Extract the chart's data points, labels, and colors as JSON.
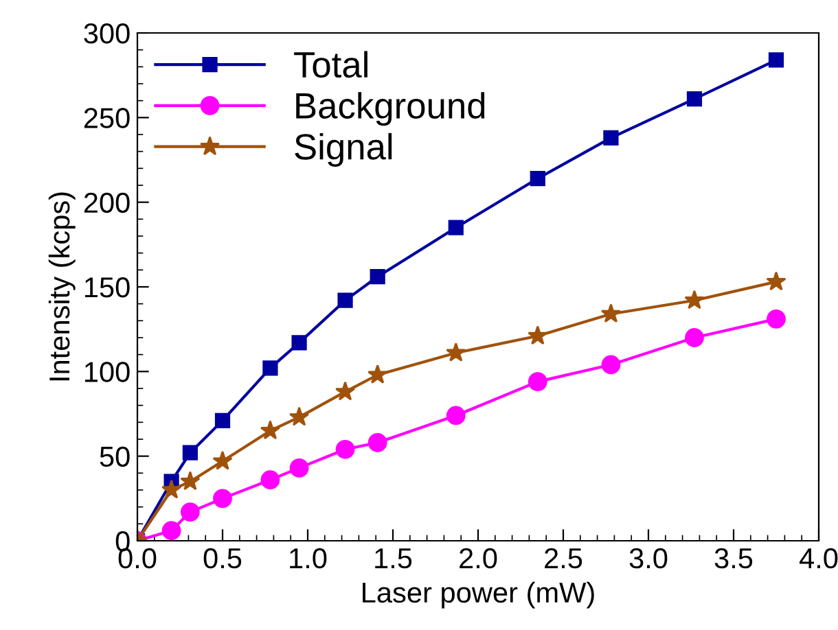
{
  "chart_data": {
    "type": "line",
    "xlabel": "Laser power (mW)",
    "ylabel": "Intensity (kcps)",
    "x": [
      0,
      0.2,
      0.31,
      0.5,
      0.78,
      0.95,
      1.22,
      1.41,
      1.87,
      2.35,
      2.78,
      3.27,
      3.75
    ],
    "series": [
      {
        "name": "Total",
        "color": "#0000a0",
        "marker": "square",
        "values": [
          0,
          35,
          52,
          71,
          102,
          117,
          142,
          156,
          185,
          214,
          238,
          261,
          284
        ]
      },
      {
        "name": "Background",
        "color": "#ff00ff",
        "marker": "circle",
        "values": [
          0,
          6,
          17,
          25,
          36,
          43,
          54,
          58,
          74,
          94,
          104,
          120,
          131
        ]
      },
      {
        "name": "Signal",
        "color": "#a0520a",
        "marker": "star",
        "values": [
          0,
          30,
          35,
          47,
          65,
          73,
          88,
          98,
          111,
          121,
          134,
          142,
          153
        ]
      }
    ],
    "xlim": [
      0,
      4
    ],
    "xticks": [
      {
        "value": 0,
        "label": "0.0"
      },
      0.5,
      {
        "value": 1,
        "label": "1.0"
      },
      1.5,
      {
        "value": 2,
        "label": "2.0"
      },
      2.5,
      {
        "value": 3,
        "label": "3.0"
      },
      3.5,
      {
        "value": 4,
        "label": "4.0"
      }
    ],
    "ylim": [
      0,
      300
    ],
    "yticks": [
      0,
      50,
      100,
      150,
      200,
      250,
      300
    ],
    "grid": false,
    "legend": "top left",
    "line_style": "solid"
  }
}
